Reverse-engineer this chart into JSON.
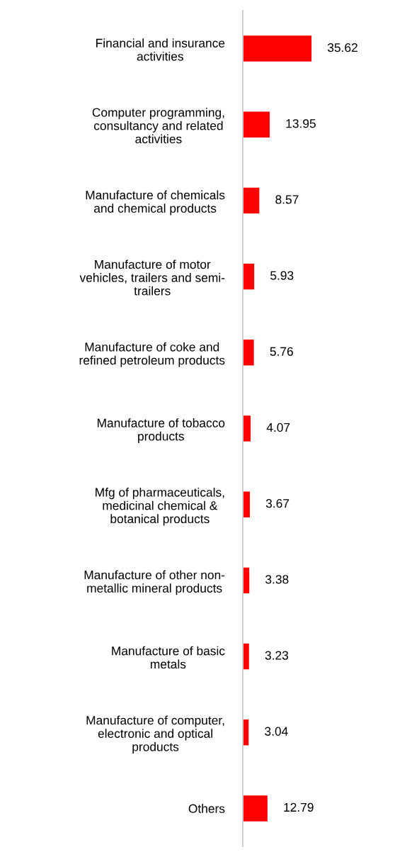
{
  "chart_data": {
    "type": "bar",
    "orientation": "horizontal",
    "categories": [
      "Financial and insurance\nactivities",
      "Computer programming,\nconsultancy and related\nactivities",
      "Manufacture of chemicals\nand chemical products",
      "Manufacture of motor\nvehicles, trailers and semi-\ntrailers",
      "Manufacture of coke and\nrefined petroleum products",
      "Manufacture of tobacco\nproducts",
      "Mfg of pharmaceuticals,\nmedicinal chemical &\nbotanical products",
      "Manufacture of other non-\nmetallic mineral products",
      "Manufacture of basic\nmetals",
      "Manufacture of computer,\nelectronic and optical\nproducts",
      "Others"
    ],
    "values": [
      35.62,
      13.95,
      8.57,
      5.93,
      5.76,
      4.07,
      3.67,
      3.38,
      3.23,
      3.04,
      12.79
    ],
    "color": "#ff0000",
    "data_labels": true,
    "tick_labels": "y",
    "grid": false,
    "legend": false
  }
}
